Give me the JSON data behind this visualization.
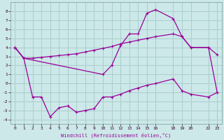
{
  "background_color": "#cce8e8",
  "grid_color": "#aacece",
  "line_color": "#990099",
  "xlabel": "Windchill (Refroidissement éolien,°C)",
  "xlim": [
    -0.5,
    23.5
  ],
  "ylim": [
    -4.5,
    9.0
  ],
  "xticks": [
    0,
    1,
    2,
    3,
    4,
    5,
    6,
    7,
    8,
    9,
    10,
    11,
    12,
    13,
    14,
    15,
    16,
    18,
    19,
    20,
    22,
    23
  ],
  "yticks": [
    -4,
    -3,
    -2,
    -1,
    0,
    1,
    2,
    3,
    4,
    5,
    6,
    7,
    8
  ],
  "curve_top_x": [
    0,
    1,
    10,
    11,
    12,
    13,
    14,
    15,
    16,
    18,
    19,
    20,
    22,
    23
  ],
  "curve_top_y": [
    4.0,
    2.8,
    1.0,
    2.0,
    4.2,
    5.5,
    5.5,
    7.8,
    8.2,
    7.2,
    5.2,
    4.0,
    4.0,
    3.2
  ],
  "curve_mid_x": [
    0,
    1,
    2,
    3,
    4,
    5,
    6,
    7,
    8,
    9,
    10,
    11,
    12,
    13,
    14,
    15,
    16,
    18,
    19,
    20,
    22,
    23
  ],
  "curve_mid_y": [
    4.0,
    2.8,
    2.8,
    2.9,
    3.0,
    3.1,
    3.2,
    3.3,
    3.5,
    3.7,
    3.9,
    4.1,
    4.4,
    4.6,
    4.8,
    5.0,
    5.2,
    5.5,
    5.2,
    4.0,
    4.0,
    -1.0
  ],
  "curve_bot_x": [
    0,
    1,
    2,
    3,
    4,
    5,
    6,
    7,
    8,
    9,
    10,
    11,
    12,
    13,
    14,
    15,
    16,
    18,
    19,
    20,
    22,
    23
  ],
  "curve_bot_y": [
    4.0,
    2.8,
    -1.5,
    -1.5,
    -3.7,
    -2.7,
    -2.5,
    -3.2,
    -3.0,
    -2.8,
    -1.5,
    -1.5,
    -1.2,
    -0.8,
    -0.5,
    -0.2,
    0.0,
    0.5,
    -0.8,
    -1.2,
    -1.5,
    -1.0
  ]
}
